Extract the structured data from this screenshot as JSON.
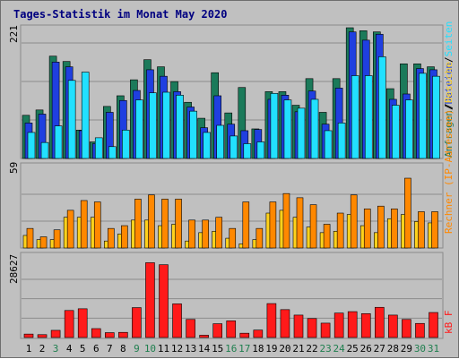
{
  "page": {
    "title": "Tages-Statistik im Monat May 2020"
  },
  "colors": {
    "background": "#c0c0c0",
    "hits": "#1b7a5a",
    "files": "#1f3fe0",
    "pages": "#22e0ff",
    "visits": "#ffd21c",
    "sites": "#ff8800",
    "kbytes": "#ff1a1a",
    "weekend_label": "#1f7f4f",
    "weekday_label": "#000000"
  },
  "chart_data": [
    {
      "type": "bar",
      "title": "Tages-Statistik im Monat May 2020",
      "ymax_label": "221",
      "ylim": [
        0,
        221
      ],
      "categories": [
        "1",
        "2",
        "3",
        "4",
        "5",
        "6",
        "7",
        "8",
        "9",
        "10",
        "11",
        "12",
        "13",
        "14",
        "15",
        "16",
        "17",
        "18",
        "19",
        "20",
        "21",
        "22",
        "23",
        "24",
        "25",
        "26",
        "27",
        "28",
        "29",
        "30",
        "31"
      ],
      "weekend_days": [
        "3",
        "9",
        "10",
        "16",
        "17",
        "23",
        "24",
        "30",
        "31"
      ],
      "legend": [
        "Anfragen",
        "Dateien",
        "Seiten"
      ],
      "series": [
        {
          "name": "Anfragen",
          "values": [
            73,
            82,
            173,
            164,
            48,
            28,
            88,
            106,
            133,
            167,
            155,
            130,
            95,
            68,
            145,
            77,
            120,
            50,
            113,
            113,
            90,
            135,
            78,
            135,
            221,
            216,
            214,
            118,
            160,
            160,
            155
          ]
        },
        {
          "name": "Dateien",
          "values": [
            60,
            75,
            163,
            155,
            47,
            25,
            78,
            98,
            115,
            150,
            139,
            113,
            87,
            52,
            106,
            58,
            47,
            49,
            100,
            107,
            79,
            114,
            58,
            119,
            214,
            200,
            210,
            100,
            109,
            152,
            150
          ]
        },
        {
          "name": "Seiten",
          "values": [
            44,
            27,
            55,
            132,
            146,
            35,
            20,
            48,
            99,
            111,
            112,
            107,
            80,
            44,
            56,
            38,
            25,
            28,
            110,
            99,
            85,
            100,
            47,
            60,
            140,
            140,
            172,
            90,
            99,
            144,
            139
          ]
        }
      ]
    },
    {
      "type": "bar",
      "ymax_label": "59",
      "ylim": [
        0,
        59
      ],
      "legend": [
        "Rechner (IP-Adressen)",
        "Besuche"
      ],
      "series": [
        {
          "name": "Besuche",
          "values": [
            9,
            6,
            6,
            22,
            22,
            22,
            5,
            10,
            20,
            20,
            16,
            17,
            5,
            11,
            12,
            7,
            3,
            6,
            25,
            27,
            22,
            15,
            11,
            12,
            24,
            16,
            11,
            21,
            24,
            19,
            18
          ]
        },
        {
          "name": "Rechner (IP-Adressen)",
          "values": [
            14,
            8,
            13,
            27,
            34,
            33,
            14,
            16,
            35,
            38,
            35,
            35,
            20,
            20,
            22,
            14,
            33,
            14,
            33,
            39,
            36,
            31,
            17,
            25,
            38,
            28,
            30,
            28,
            50,
            26,
            26
          ]
        }
      ]
    },
    {
      "type": "bar",
      "ymax_label": "28627",
      "ylim": [
        0,
        28627
      ],
      "legend": [
        "kB F"
      ],
      "series": [
        {
          "name": "kB F",
          "values": [
            1200,
            1000,
            2500,
            9400,
            10000,
            3100,
            1700,
            1800,
            10400,
            26000,
            25300,
            11700,
            6300,
            800,
            4800,
            5800,
            1500,
            2600,
            11800,
            9700,
            7800,
            6600,
            5000,
            8500,
            9000,
            8300,
            10500,
            7800,
            6300,
            4900,
            8700
          ]
        }
      ]
    }
  ]
}
